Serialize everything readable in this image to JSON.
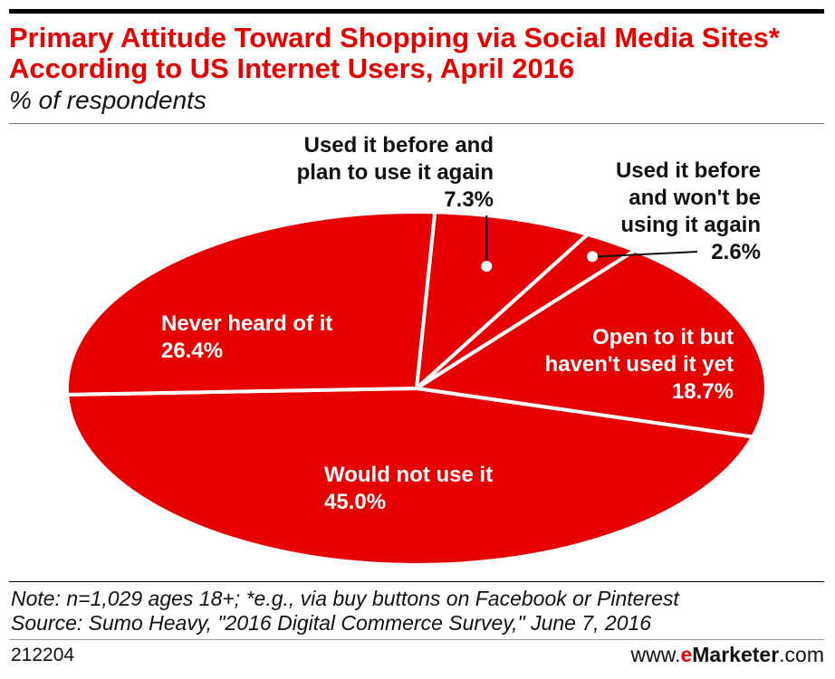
{
  "chart_data": {
    "type": "pie",
    "title": "Primary Attitude Toward Shopping via Social Media Sites* According to US Internet Users, April 2016",
    "subtitle": "% of respondents",
    "slices": [
      {
        "label_lines": [
          "Used it before and",
          "plan to use it again"
        ],
        "value_label": "7.3%",
        "value": 7.3
      },
      {
        "label_lines": [
          "Used it before",
          "and won't be",
          "using it again"
        ],
        "value_label": "2.6%",
        "value": 2.6
      },
      {
        "label_lines": [
          "Open to it but",
          "haven't used it yet"
        ],
        "value_label": "18.7%",
        "value": 18.7
      },
      {
        "label_lines": [
          "Would not use it"
        ],
        "value_label": "45.0%",
        "value": 45.0
      },
      {
        "label_lines": [
          "Never heard of it"
        ],
        "value_label": "26.4%",
        "value": 26.4
      }
    ],
    "colors": {
      "slice": "#e60000",
      "separator": "#ffffff",
      "label_inside": "#ffffff",
      "label_outside": "#111111"
    }
  },
  "footer": {
    "note": "Note: n=1,029 ages 18+; *e.g., via buy buttons on Facebook or Pinterest",
    "source": "Source: Sumo Heavy, \"2016 Digital Commerce Survey,\" June 7, 2016",
    "chart_id": "212204",
    "brand_prefix": "www.",
    "brand_e": "e",
    "brand_main": "Marketer",
    "brand_suffix": ".com"
  }
}
